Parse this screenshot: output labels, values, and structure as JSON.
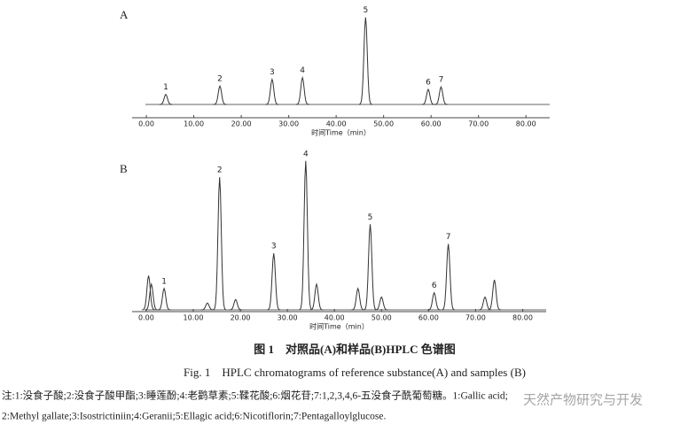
{
  "chart_data": [
    {
      "type": "chromatogram",
      "panel": "A",
      "x_label": "时间Time（min）",
      "xlim": [
        -3,
        85
      ],
      "ylim": [
        0,
        110
      ],
      "xticks": [
        {
          "value": 0,
          "label": "0.00"
        },
        {
          "value": 10,
          "label": "10.00"
        },
        {
          "value": 20,
          "label": "20.00"
        },
        {
          "value": 30,
          "label": "30.00"
        },
        {
          "value": 40,
          "label": "40.00"
        },
        {
          "value": 50,
          "label": "50.00"
        },
        {
          "value": 60,
          "label": "60.00"
        },
        {
          "value": 70,
          "label": "70.00"
        },
        {
          "value": 80,
          "label": "80.00"
        }
      ],
      "categories": [
        "1",
        "2",
        "3",
        "4",
        "5",
        "6",
        "7"
      ],
      "x": [
        4.1,
        15.5,
        26.5,
        32.9,
        46.2,
        59.4,
        62.1
      ],
      "values": [
        12,
        22,
        30,
        32,
        104,
        18,
        21
      ],
      "color": "#333333"
    },
    {
      "type": "chromatogram",
      "panel": "B",
      "x_label": "时间Time（min）",
      "xlim": [
        -3,
        85
      ],
      "ylim": [
        0,
        180
      ],
      "xticks": [
        {
          "value": 0,
          "label": "0.00"
        },
        {
          "value": 10,
          "label": "10.00"
        },
        {
          "value": 20,
          "label": "20.00"
        },
        {
          "value": 30,
          "label": "30.00"
        },
        {
          "value": 40,
          "label": "40.00"
        },
        {
          "value": 50,
          "label": "50.00"
        },
        {
          "value": 60,
          "label": "60.00"
        },
        {
          "value": 70,
          "label": "70.00"
        },
        {
          "value": 80,
          "label": "80.00"
        }
      ],
      "categories": [
        null,
        null,
        "1",
        null,
        "2",
        null,
        "3",
        "4",
        null,
        null,
        "5",
        null,
        "6",
        "7",
        null,
        null
      ],
      "x": [
        0.5,
        1.1,
        3.8,
        13,
        15.6,
        19,
        27.1,
        33.9,
        36.2,
        45,
        47.6,
        50,
        61.2,
        64.2,
        72,
        74
      ],
      "values": [
        40,
        30,
        25,
        8,
        155,
        12,
        66,
        174,
        30,
        25,
        100,
        15,
        20,
        77,
        15,
        35
      ],
      "color": "#333333"
    }
  ],
  "caption": {
    "title_cn": "图 1　对照品(A)和样品(B)HPLC 色谱图",
    "title_en": "Fig. 1　HPLC chromatograms of reference substance(A) and samples (B)",
    "note_line1": "注:1:没食子酸;2:没食子酸甲酯;3:睡莲酚;4:老鹳草素;5:鞣花酸;6:烟花苷;7:1,2,3,4,6-五没食子酰葡萄糖。1:Gallic acid;",
    "note_line2": "2:Methyl gallate;3:Isostrictiniin;4:Geranii;5:Ellagic acid;6:Nicotiflorin;7:Pentagalloylglucose.",
    "watermark": "天然产物研究与开发"
  }
}
